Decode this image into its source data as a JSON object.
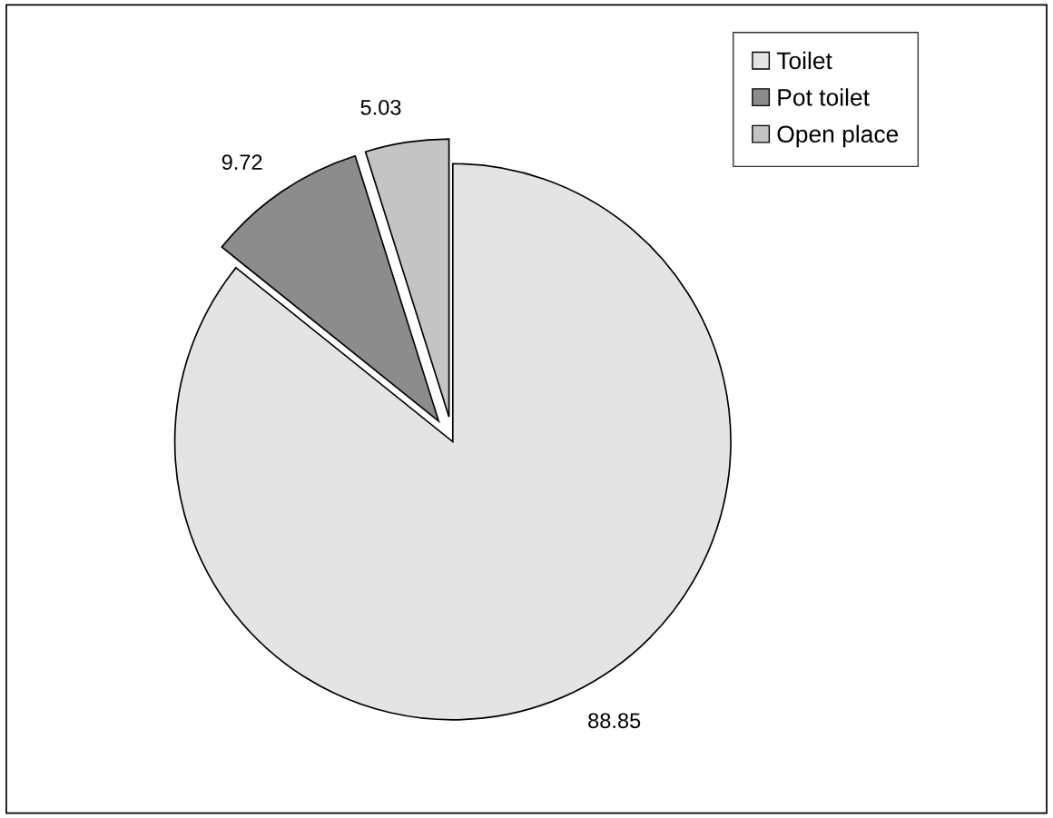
{
  "chart_data": {
    "type": "pie",
    "categories": [
      "Toilet",
      "Pot toilet",
      "Open place"
    ],
    "values": [
      88.85,
      9.72,
      5.03
    ],
    "colors": [
      "#e4e4e4",
      "#8c8c8c",
      "#c4c4c4"
    ],
    "data_labels": true,
    "legend": "top right"
  }
}
